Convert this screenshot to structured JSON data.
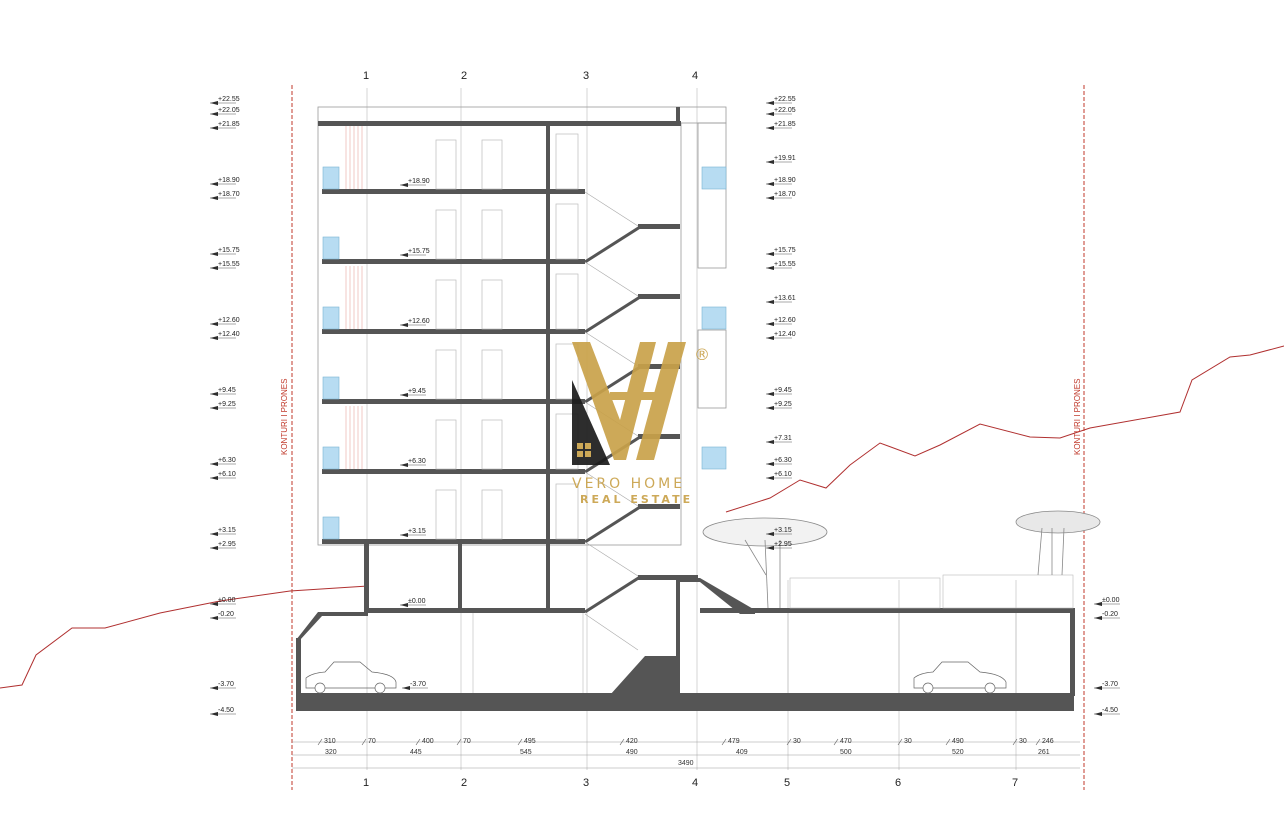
{
  "drawing": {
    "property_line_label": "KONTURI I PRONES",
    "axes_top": [
      "1",
      "2",
      "3",
      "4"
    ],
    "axes_bottom": [
      "1",
      "2",
      "3",
      "4",
      "5",
      "6",
      "7"
    ],
    "levels_left": [
      "+22.55",
      "+22.05",
      "+21.85",
      "+18.90",
      "+18.70",
      "+15.75",
      "+15.55",
      "+12.60",
      "+12.40",
      "+9.45",
      "+9.25",
      "+6.30",
      "+6.10",
      "+3.15",
      "+2.95",
      "±0.00",
      "-0.20",
      "-3.70",
      "-4.50"
    ],
    "levels_right_building": [
      "+22.55",
      "+22.05",
      "+21.85",
      "+19.91",
      "+18.90",
      "+18.70",
      "+15.75",
      "+15.55",
      "+13.61",
      "+12.60",
      "+12.40",
      "+9.45",
      "+9.25",
      "+7.31",
      "+6.30",
      "+6.10",
      "+3.15",
      "+2.95"
    ],
    "levels_right_edge": [
      "±0.00",
      "-0.20",
      "-3.70",
      "-4.50"
    ],
    "floor_labels": [
      "+18.90",
      "+15.75",
      "+12.60",
      "+9.45",
      "+6.30",
      "+3.15",
      "±0.00",
      "-3.70"
    ],
    "dims_row1": [
      "310",
      "70",
      "400",
      "70",
      "495",
      "420",
      "479",
      "30",
      "470",
      "30",
      "490",
      "30",
      "246"
    ],
    "dims_row2": [
      "320",
      "445",
      "545",
      "490",
      "409",
      "500",
      "520",
      "261"
    ],
    "dims_total": "3490"
  },
  "watermark": {
    "brand_line1": "VERO HOME",
    "brand_line2": "REAL ESTATE",
    "registered": "®"
  }
}
